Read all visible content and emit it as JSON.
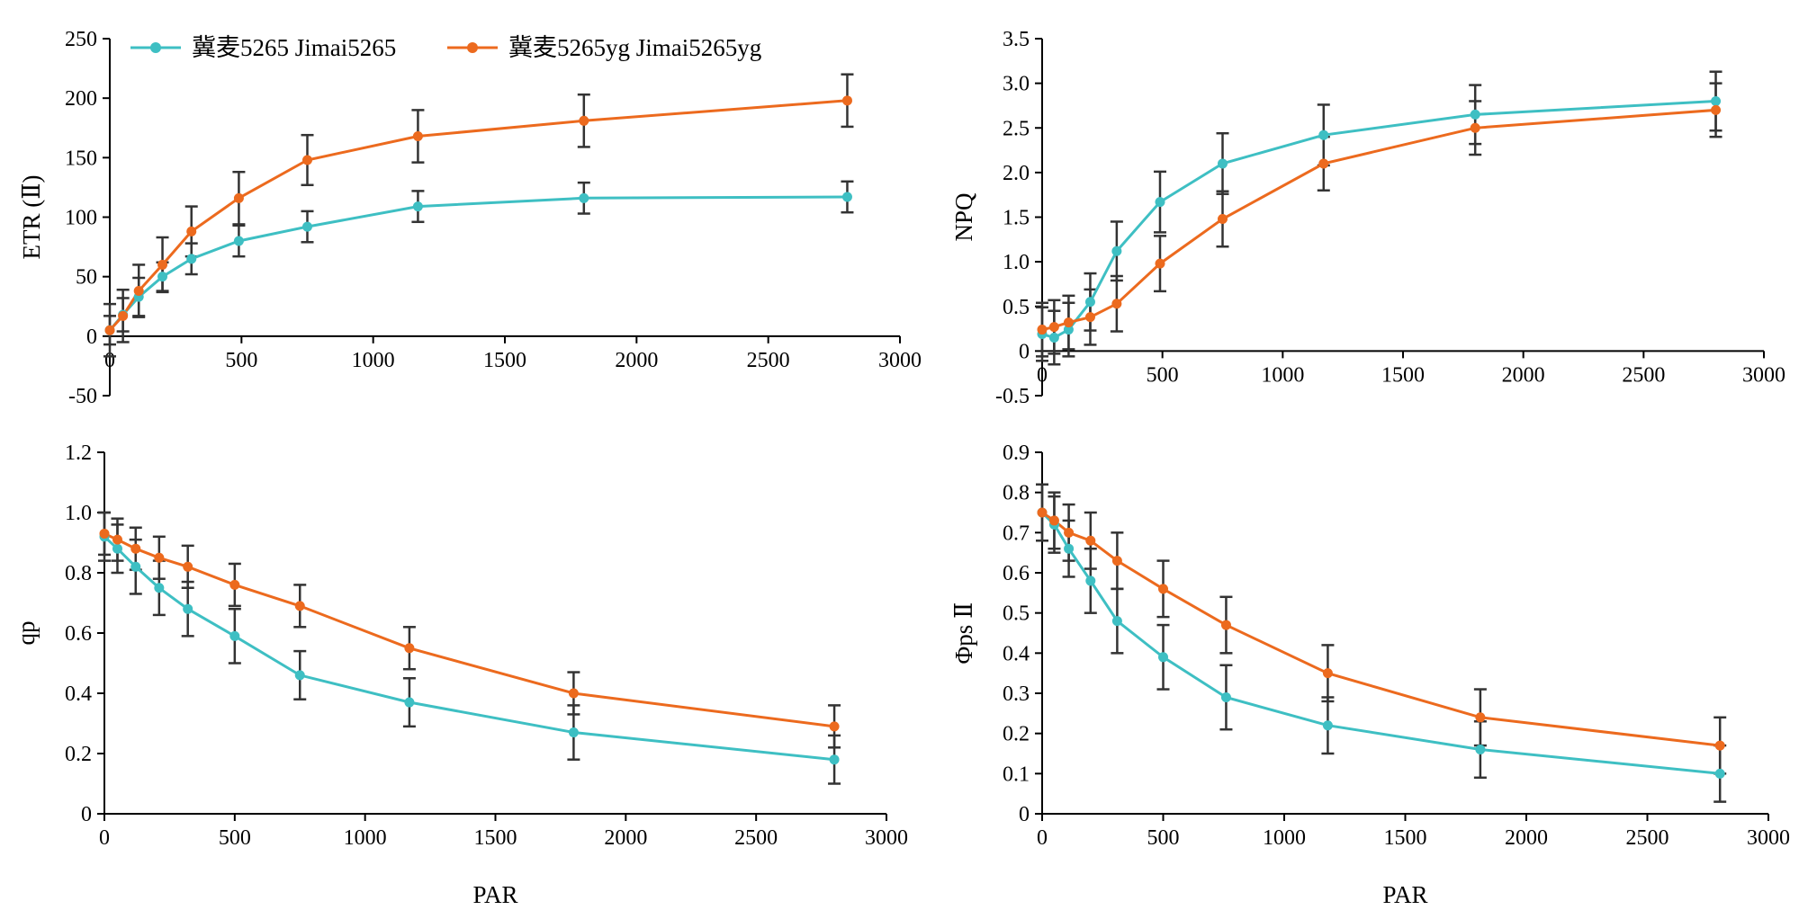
{
  "legend": [
    {
      "label": "冀麦5265 Jimai5265",
      "color": "#3EBFC3"
    },
    {
      "label": "冀麦5265yg  Jimai5265yg",
      "color": "#EC6A1E"
    }
  ],
  "chart_data": [
    {
      "type": "line",
      "ylabel": "ETR (Ⅱ)",
      "xlabel": "",
      "xlim": [
        0,
        3000
      ],
      "ylim": [
        -50,
        250
      ],
      "xticks": [
        "0",
        "500",
        "1000",
        "1500",
        "2000",
        "2500",
        "3000"
      ],
      "yticks": [
        "-50",
        "0",
        "50",
        "100",
        "150",
        "200",
        "250"
      ],
      "series": [
        {
          "name": "冀麦5265 Jimai5265",
          "color": "#3EBFC3",
          "x": [
            0,
            50,
            110,
            200,
            310,
            490,
            750,
            1170,
            1800,
            2800
          ],
          "y": [
            5,
            18,
            33,
            50,
            65,
            80,
            92,
            109,
            116,
            117
          ],
          "err": [
            12,
            14,
            16,
            12,
            13,
            13,
            13,
            13,
            13,
            13
          ]
        },
        {
          "name": "冀麦5265yg  Jimai5265yg",
          "color": "#EC6A1E",
          "x": [
            0,
            50,
            110,
            200,
            310,
            490,
            750,
            1170,
            1800,
            2800
          ],
          "y": [
            5,
            17,
            38,
            60,
            88,
            116,
            148,
            168,
            181,
            198
          ],
          "err": [
            22,
            22,
            22,
            23,
            21,
            22,
            21,
            22,
            22,
            22
          ]
        }
      ]
    },
    {
      "type": "line",
      "ylabel": "NPQ",
      "xlabel": "",
      "xlim": [
        0,
        3000
      ],
      "ylim": [
        -0.5,
        3.5
      ],
      "xticks": [
        "0",
        "500",
        "1000",
        "1500",
        "2000",
        "2500",
        "3000"
      ],
      "yticks": [
        "-0.5",
        "0",
        "0.5",
        "1.0",
        "1.5",
        "2.0",
        "2.5",
        "3.0",
        "3.5"
      ],
      "series": [
        {
          "name": "冀麦5265 Jimai5265",
          "color": "#3EBFC3",
          "x": [
            0,
            50,
            110,
            200,
            310,
            490,
            750,
            1170,
            1800,
            2800
          ],
          "y": [
            0.19,
            0.15,
            0.24,
            0.55,
            1.12,
            1.67,
            2.1,
            2.42,
            2.65,
            2.8
          ],
          "err": [
            0.3,
            0.3,
            0.3,
            0.32,
            0.33,
            0.34,
            0.34,
            0.34,
            0.33,
            0.33
          ]
        },
        {
          "name": "冀麦5265yg  Jimai5265yg",
          "color": "#EC6A1E",
          "x": [
            0,
            50,
            110,
            200,
            310,
            490,
            750,
            1170,
            1800,
            2800
          ],
          "y": [
            0.24,
            0.27,
            0.32,
            0.38,
            0.53,
            0.98,
            1.48,
            2.1,
            2.5,
            2.7
          ],
          "err": [
            0.3,
            0.3,
            0.3,
            0.31,
            0.31,
            0.31,
            0.31,
            0.3,
            0.3,
            0.3
          ]
        }
      ]
    },
    {
      "type": "line",
      "ylabel": "qp",
      "xlabel": "PAR",
      "xlim": [
        0,
        3000
      ],
      "ylim": [
        0,
        1.2
      ],
      "xticks": [
        "0",
        "500",
        "1000",
        "1500",
        "2000",
        "2500",
        "3000"
      ],
      "yticks": [
        "0",
        "0.2",
        "0.4",
        "0.6",
        "0.8",
        "1.0",
        "1.2"
      ],
      "series": [
        {
          "name": "冀麦5265 Jimai5265",
          "color": "#3EBFC3",
          "x": [
            0,
            50,
            120,
            210,
            320,
            500,
            750,
            1170,
            1800,
            2800
          ],
          "y": [
            0.92,
            0.88,
            0.82,
            0.75,
            0.68,
            0.59,
            0.46,
            0.37,
            0.27,
            0.18
          ],
          "err": [
            0.08,
            0.08,
            0.09,
            0.09,
            0.09,
            0.09,
            0.08,
            0.08,
            0.09,
            0.08
          ]
        },
        {
          "name": "冀麦5265yg  Jimai5265yg",
          "color": "#EC6A1E",
          "x": [
            0,
            50,
            120,
            210,
            320,
            500,
            750,
            1170,
            1800,
            2800
          ],
          "y": [
            0.93,
            0.91,
            0.88,
            0.85,
            0.82,
            0.76,
            0.69,
            0.55,
            0.4,
            0.29
          ],
          "err": [
            0.07,
            0.07,
            0.07,
            0.07,
            0.07,
            0.07,
            0.07,
            0.07,
            0.07,
            0.07
          ]
        }
      ]
    },
    {
      "type": "line",
      "ylabel": "Φps Ⅱ",
      "xlabel": "PAR",
      "xlim": [
        0,
        3000
      ],
      "ylim": [
        0,
        0.9
      ],
      "xticks": [
        "0",
        "500",
        "1000",
        "1500",
        "2000",
        "2500",
        "3000"
      ],
      "yticks": [
        "0",
        "0.1",
        "0.2",
        "0.3",
        "0.4",
        "0.5",
        "0.6",
        "0.7",
        "0.8",
        "0.9"
      ],
      "series": [
        {
          "name": "冀麦5265 Jimai5265",
          "color": "#3EBFC3",
          "x": [
            0,
            50,
            110,
            200,
            310,
            500,
            760,
            1180,
            1810,
            2800
          ],
          "y": [
            0.75,
            0.72,
            0.66,
            0.58,
            0.48,
            0.39,
            0.29,
            0.22,
            0.16,
            0.1
          ],
          "err": [
            0.07,
            0.07,
            0.07,
            0.08,
            0.08,
            0.08,
            0.08,
            0.07,
            0.07,
            0.07
          ]
        },
        {
          "name": "冀麦5265yg  Jimai5265yg",
          "color": "#EC6A1E",
          "x": [
            0,
            50,
            110,
            200,
            310,
            500,
            760,
            1180,
            1810,
            2800
          ],
          "y": [
            0.75,
            0.73,
            0.7,
            0.68,
            0.63,
            0.56,
            0.47,
            0.35,
            0.24,
            0.17
          ],
          "err": [
            0.07,
            0.07,
            0.07,
            0.07,
            0.07,
            0.07,
            0.07,
            0.07,
            0.07,
            0.07
          ]
        }
      ]
    }
  ]
}
